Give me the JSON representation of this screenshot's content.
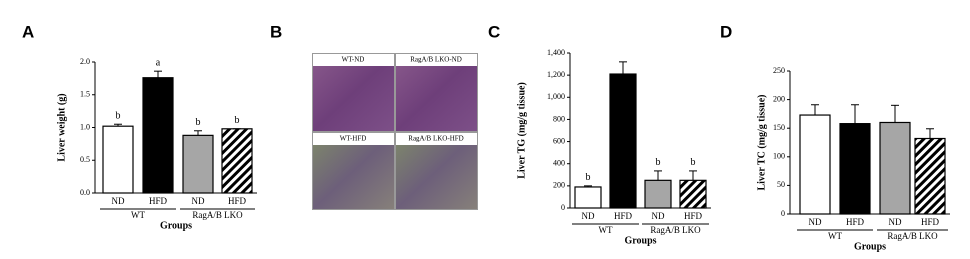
{
  "panel_labels": [
    "A",
    "B",
    "C",
    "D"
  ],
  "images": {
    "labels": [
      "WT-ND",
      "RagA/B LKO-ND",
      "WT-HFD",
      "RagA/B LKO-HFD"
    ]
  },
  "chart_data": [
    {
      "type": "bar",
      "ylabel": "Liver weight (g)",
      "xlabel": "Groups",
      "categories": [
        "ND",
        "HFD",
        "ND",
        "HFD"
      ],
      "groups": [
        "WT",
        "RagA/B LKO"
      ],
      "values": [
        1.02,
        1.76,
        0.88,
        0.98
      ],
      "errors": [
        0.03,
        0.1,
        0.07,
        0
      ],
      "annotations": [
        "b",
        "a",
        "b",
        "b"
      ],
      "colors": [
        "#ffffff",
        "#000000",
        "#a6a6a6",
        "#ffffff"
      ],
      "hatch": [
        false,
        false,
        false,
        true
      ],
      "ylim": [
        0,
        2
      ],
      "yticks": [
        {
          "value": 0,
          "label": "0.0"
        },
        0.5,
        {
          "value": 1,
          "label": "1.0"
        },
        1.5,
        {
          "value": 2,
          "label": "2.0"
        }
      ]
    },
    {
      "type": "bar",
      "ylabel": "Liver TG (mg/g tissue)",
      "xlabel": "Groups",
      "categories": [
        "ND",
        "HFD",
        "ND",
        "HFD"
      ],
      "groups": [
        "WT",
        "RagA/B LKO"
      ],
      "values": [
        190,
        1210,
        250,
        250
      ],
      "errors": [
        10,
        110,
        85,
        85
      ],
      "annotations": [
        "b",
        null,
        "b",
        "b"
      ],
      "colors": [
        "#ffffff",
        "#000000",
        "#a6a6a6",
        "#ffffff"
      ],
      "hatch": [
        false,
        false,
        false,
        true
      ],
      "ylim": [
        0,
        1400
      ],
      "yticks": [
        0,
        200,
        400,
        600,
        800,
        {
          "value": 1000,
          "label": "1,000"
        },
        {
          "value": 1200,
          "label": "1,200"
        },
        {
          "value": 1400,
          "label": "1,400"
        }
      ]
    },
    {
      "type": "bar",
      "ylabel": "Liver TC (mg/g tissue)",
      "xlabel": "Groups",
      "categories": [
        "ND",
        "HFD",
        "ND",
        "HFD"
      ],
      "groups": [
        "WT",
        "RagA/B LKO"
      ],
      "values": [
        173,
        158,
        160,
        132
      ],
      "errors": [
        18,
        33,
        30,
        17
      ],
      "colors": [
        "#ffffff",
        "#000000",
        "#a6a6a6",
        "#ffffff"
      ],
      "hatch": [
        false,
        false,
        false,
        true
      ],
      "ylim": [
        0,
        250
      ],
      "yticks": [
        0,
        50,
        100,
        150,
        200,
        250
      ]
    }
  ]
}
